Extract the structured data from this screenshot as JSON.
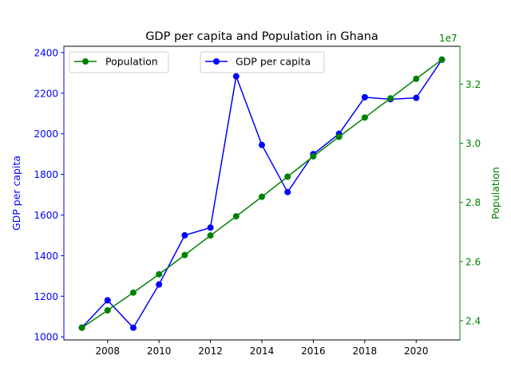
{
  "chart_data": {
    "type": "line",
    "title": "GDP per capita and Population in Ghana",
    "x": [
      2007,
      2008,
      2009,
      2010,
      2011,
      2012,
      2013,
      2014,
      2015,
      2016,
      2017,
      2018,
      2019,
      2020,
      2021
    ],
    "xticks": [
      2008,
      2010,
      2012,
      2014,
      2016,
      2018,
      2020
    ],
    "xlim": [
      2006.3,
      2021.7
    ],
    "xlabel": "",
    "grid": false,
    "series": [
      {
        "name": "GDP per capita",
        "axis": "left",
        "color": "#0000ff",
        "marker": "circle",
        "values": [
          1046,
          1180,
          1045,
          1258,
          1500,
          1538,
          2283,
          1945,
          1713,
          1900,
          2000,
          2180,
          2170,
          2177,
          2365
        ]
      },
      {
        "name": "Population",
        "axis": "right",
        "color": "#008000",
        "marker": "circle",
        "values": [
          23760000,
          24350000,
          24950000,
          25570000,
          26220000,
          26880000,
          27530000,
          28190000,
          28870000,
          29560000,
          30220000,
          30870000,
          31520000,
          32180000,
          32830000
        ]
      }
    ],
    "y_left": {
      "label": "GDP per capita",
      "color": "#0000ff",
      "ticks": [
        1000,
        1200,
        1400,
        1600,
        1800,
        2000,
        2200,
        2400
      ],
      "ylim": [
        985,
        2431
      ]
    },
    "y_right": {
      "label": "Population",
      "color": "#008000",
      "offset_text": "1e7",
      "ticks": [
        2.4,
        2.6,
        2.8,
        3.0,
        3.2
      ],
      "tick_scale": 10000000,
      "ylim": [
        23350000,
        33280000
      ]
    },
    "legends": [
      {
        "placement": "upper-left",
        "entries": [
          "Population"
        ]
      },
      {
        "placement": "upper-center",
        "entries": [
          "GDP per capita"
        ]
      }
    ]
  }
}
